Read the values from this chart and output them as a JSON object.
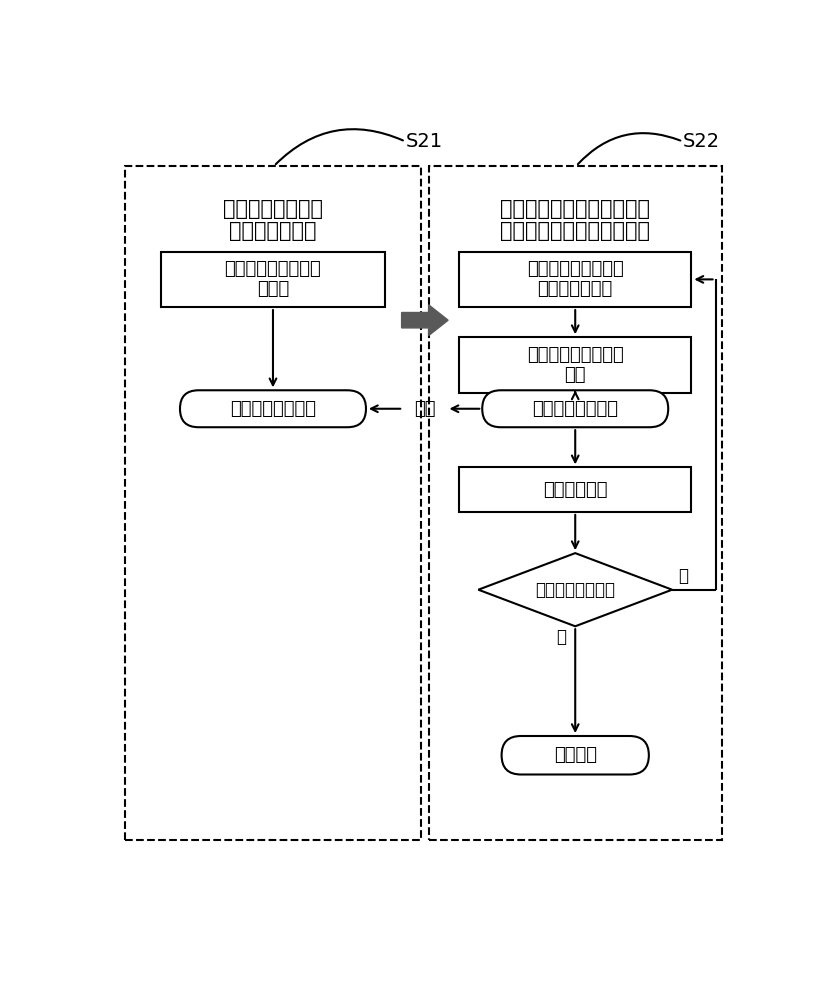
{
  "fig_width": 8.26,
  "fig_height": 10.0,
  "bg_color": "#ffffff",
  "label_s21": "S21",
  "label_s22": "S22",
  "left_title_line1": "热负荷预测得出一",
  "left_title_line2": "次侧流量目标值",
  "right_title_line1": "采用预测模型对一级热网中",
  "right_title_line2": "泵、阀的运行方式进行寻优",
  "box1_line1": "对各热力站进行热负",
  "box1_line2": "荷预测",
  "box2_line1": "产生不同泵转速和阀",
  "box2_line2": "开度的调节方案",
  "box3_line1": "通过预测模型进行预",
  "box3_line2": "模拟",
  "stadium_left_text": "一次侧流量目标值",
  "stadium_right_text": "一次侧流量模拟值",
  "compare_text": "比较",
  "box4_text": "优化方案评价",
  "diamond_text": "是否达到迭代代数",
  "yes_text": "是",
  "no_text": "否",
  "stadium_bottom_text": "最优方案",
  "line_color": "#000000",
  "big_arrow_color": "#595959",
  "font_size_title": 15,
  "font_size_box": 13,
  "font_size_compare": 13,
  "font_size_yesno": 12,
  "font_size_s": 14
}
